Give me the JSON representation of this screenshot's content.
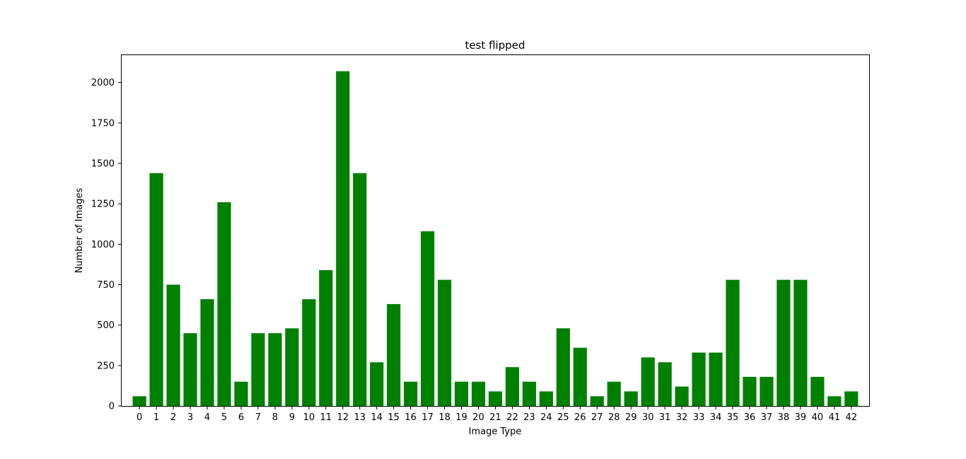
{
  "chart_data": {
    "type": "bar",
    "title": "test flipped",
    "xlabel": "Image Type",
    "ylabel": "Number of Images",
    "categories": [
      "0",
      "1",
      "2",
      "3",
      "4",
      "5",
      "6",
      "7",
      "8",
      "9",
      "10",
      "11",
      "12",
      "13",
      "14",
      "15",
      "16",
      "17",
      "18",
      "19",
      "20",
      "21",
      "22",
      "23",
      "24",
      "25",
      "26",
      "27",
      "28",
      "29",
      "30",
      "31",
      "32",
      "33",
      "34",
      "35",
      "36",
      "37",
      "38",
      "39",
      "40",
      "41",
      "42"
    ],
    "values": [
      60,
      1440,
      750,
      450,
      660,
      1260,
      150,
      450,
      450,
      480,
      660,
      840,
      2070,
      1440,
      270,
      630,
      150,
      1080,
      780,
      150,
      150,
      90,
      240,
      150,
      90,
      480,
      360,
      60,
      150,
      90,
      300,
      270,
      120,
      330,
      330,
      780,
      180,
      180,
      780,
      780,
      180,
      60,
      90
    ],
    "yticks": [
      0,
      250,
      500,
      750,
      1000,
      1250,
      1500,
      1750,
      2000
    ],
    "ylim": [
      0,
      2173.5
    ],
    "bar_color": "#008000",
    "grid": false,
    "legend": "none"
  }
}
